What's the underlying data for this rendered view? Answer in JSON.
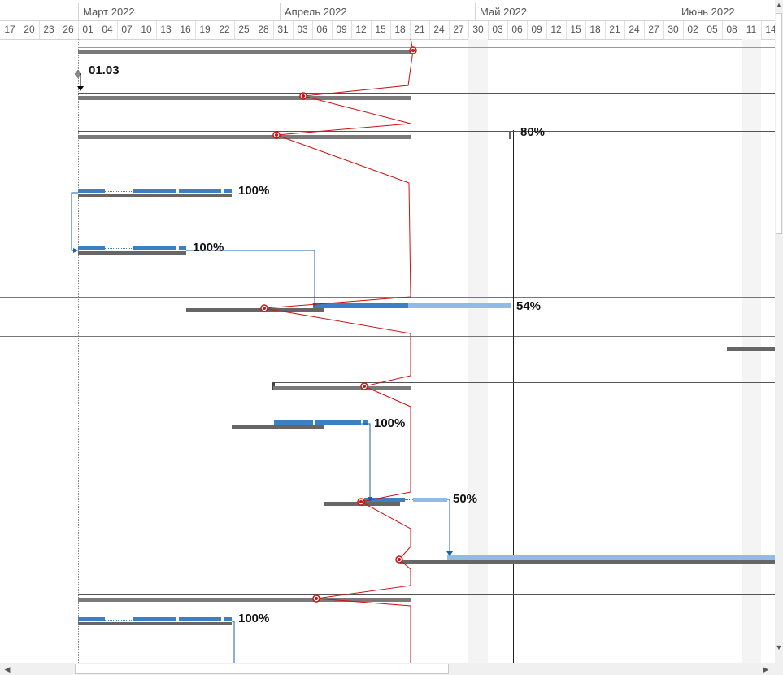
{
  "timescale": {
    "months": [
      "Март 2022",
      "Апрель 2022",
      "Май 2022",
      "Июнь 2022"
    ],
    "days": [
      "17",
      "20",
      "23",
      "26",
      "01",
      "04",
      "07",
      "10",
      "13",
      "16",
      "19",
      "22",
      "25",
      "28",
      "31",
      "03",
      "06",
      "09",
      "12",
      "15",
      "18",
      "21",
      "24",
      "27",
      "30",
      "03",
      "06",
      "09",
      "12",
      "15",
      "18",
      "21",
      "24",
      "27",
      "30",
      "02",
      "05",
      "08",
      "11",
      "14"
    ]
  },
  "labels": {
    "milestone_date": "01.03",
    "pct_row3": "80%",
    "pct_row4": "100%",
    "pct_row5": "100%",
    "pct_row6": "54%",
    "pct_row9": "100%",
    "pct_row10": "50%",
    "pct_row13": "100%"
  },
  "icons": {
    "scroll_up": "▲",
    "scroll_down": "▼",
    "scroll_left": "◀",
    "scroll_right": "▶"
  },
  "colors": {
    "baseline_gray": "#707070",
    "task_blue": "#3b7fc4",
    "task_light_blue": "#8fbbe8",
    "progress_line_red": "#cc1111",
    "status_date_green": "#4a9a4a"
  }
}
